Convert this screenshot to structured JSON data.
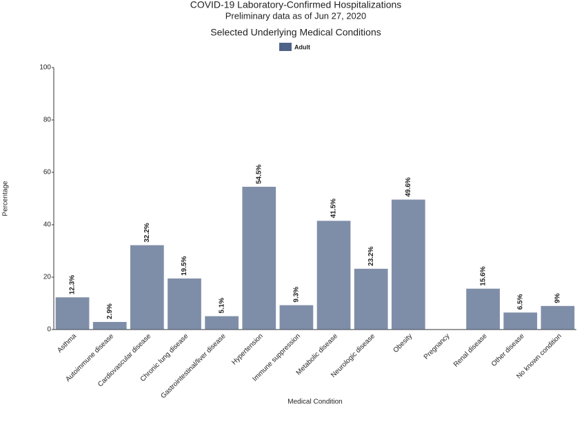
{
  "chart_data": {
    "type": "bar",
    "title": "COVID-19 Laboratory-Confirmed Hospitalizations",
    "subtitle": "Preliminary data as of Jun 27, 2020",
    "chart_title": "Selected Underlying Medical Conditions",
    "x_label": "Medical Condition",
    "y_label": "Percentage",
    "categories": [
      "Asthma",
      "Autoimmune disease",
      "Cardiovascular disease",
      "Chronic lung disease",
      "Gastrointestinal/liver disease",
      "Hypertension",
      "Immune suppression",
      "Metabolic disease",
      "Neurologic disease",
      "Obesity",
      "Pregnancy",
      "Renal disease",
      "Other disease",
      "No known condition"
    ],
    "series": [
      {
        "name": "Adult",
        "color": "#4e6387",
        "values": [
          12.3,
          2.9,
          32.2,
          19.5,
          5.1,
          54.5,
          9.3,
          41.5,
          23.2,
          49.6,
          null,
          15.6,
          6.5,
          9
        ],
        "value_labels": [
          "12.3%",
          "2.9%",
          "32.2%",
          "19.5%",
          "5.1%",
          "54.5%",
          "9.3%",
          "41.5%",
          "23.2%",
          "49.6%",
          null,
          "15.6%",
          "6.5%",
          "9%"
        ]
      }
    ],
    "ylim": [
      0,
      100
    ],
    "yticks": [
      0,
      20,
      40,
      60,
      80,
      100
    ],
    "grid": false
  }
}
